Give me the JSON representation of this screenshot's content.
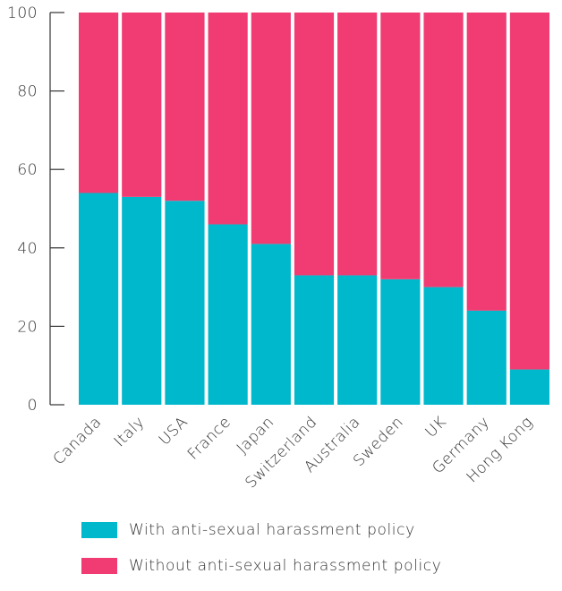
{
  "chart_data": {
    "type": "bar",
    "stacked": true,
    "categories": [
      "Canada",
      "Italy",
      "USA",
      "France",
      "Japan",
      "Switzerland",
      "Australia",
      "Sweden",
      "UK",
      "Germany",
      "Hong Kong"
    ],
    "series": [
      {
        "name": "With anti-sexual harassment policy",
        "color": "#00b8cc",
        "values": [
          54,
          53,
          52,
          46,
          41,
          33,
          33,
          32,
          30,
          24,
          9
        ]
      },
      {
        "name": "Without anti-sexual harassment policy",
        "color": "#f03c72",
        "values": [
          46,
          47,
          48,
          54,
          59,
          67,
          67,
          68,
          70,
          76,
          91
        ]
      }
    ],
    "ylim": [
      0,
      100
    ],
    "yticks": [
      0,
      20,
      40,
      60,
      80,
      100
    ],
    "grid": false,
    "legend_position": "bottom"
  }
}
